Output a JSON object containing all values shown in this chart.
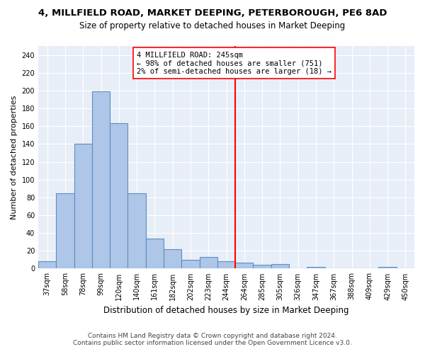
{
  "title": "4, MILLFIELD ROAD, MARKET DEEPING, PETERBOROUGH, PE6 8AD",
  "subtitle": "Size of property relative to detached houses in Market Deeping",
  "xlabel": "Distribution of detached houses by size in Market Deeping",
  "ylabel": "Number of detached properties",
  "footer_line1": "Contains HM Land Registry data © Crown copyright and database right 2024.",
  "footer_line2": "Contains public sector information licensed under the Open Government Licence v3.0.",
  "bar_labels": [
    "37sqm",
    "58sqm",
    "78sqm",
    "99sqm",
    "120sqm",
    "140sqm",
    "161sqm",
    "182sqm",
    "202sqm",
    "223sqm",
    "244sqm",
    "264sqm",
    "285sqm",
    "305sqm",
    "326sqm",
    "347sqm",
    "367sqm",
    "388sqm",
    "409sqm",
    "429sqm",
    "450sqm"
  ],
  "bar_values": [
    8,
    85,
    140,
    199,
    163,
    85,
    34,
    22,
    10,
    13,
    8,
    7,
    4,
    5,
    0,
    2,
    0,
    0,
    0,
    2,
    0
  ],
  "bar_color": "#aec6e8",
  "bar_edgecolor": "#5a8fc2",
  "bg_color": "#e8eef7",
  "annotation_text": "4 MILLFIELD ROAD: 245sqm\n← 98% of detached houses are smaller (751)\n2% of semi-detached houses are larger (18) →",
  "vline_color": "red",
  "annotation_box_edgecolor": "red",
  "ylim": [
    0,
    250
  ],
  "yticks": [
    0,
    20,
    40,
    60,
    80,
    100,
    120,
    140,
    160,
    180,
    200,
    220,
    240
  ],
  "title_fontsize": 9.5,
  "subtitle_fontsize": 8.5,
  "xlabel_fontsize": 8.5,
  "ylabel_fontsize": 8,
  "tick_fontsize": 7,
  "annotation_fontsize": 7.5,
  "footer_fontsize": 6.5
}
